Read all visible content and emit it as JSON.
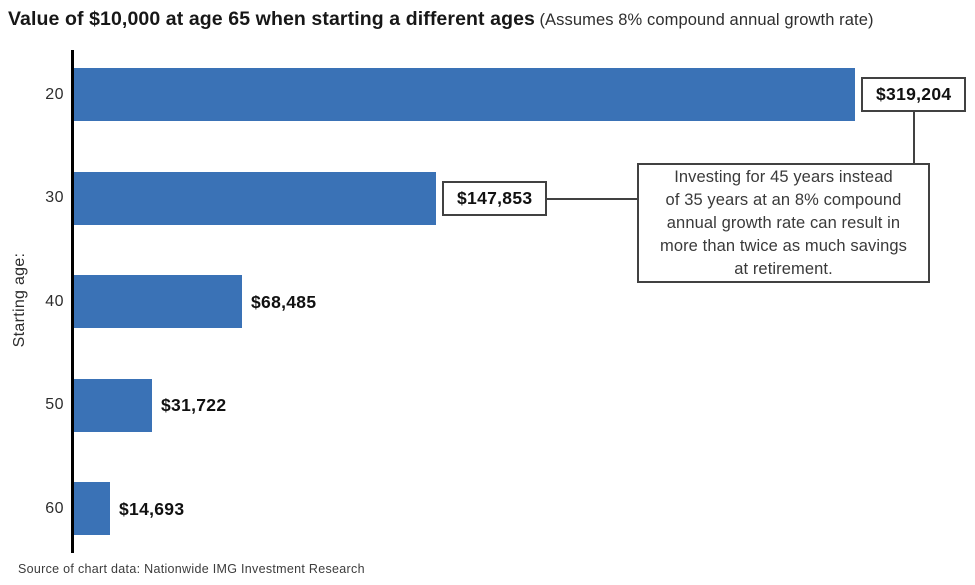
{
  "chart_data": {
    "type": "bar",
    "orientation": "horizontal",
    "title": "Value of $10,000 at age 65 when starting a different ages",
    "subtitle": "(Assumes 8% compound annual growth rate)",
    "ylabel": "Starting age:",
    "xlabel": "",
    "categories": [
      "20",
      "30",
      "40",
      "50",
      "60"
    ],
    "values": [
      319204,
      147853,
      68485,
      31722,
      14693
    ],
    "value_labels": [
      "$319,204",
      "$147,853",
      "$68,485",
      "$31,722",
      "$14,693"
    ],
    "boxed_labels": [
      true,
      true,
      false,
      false,
      false
    ],
    "xlim": [
      0,
      319204
    ],
    "grid": false,
    "legend": false,
    "bar_color": "#3A72B6",
    "box_border_color": "#414141",
    "annotation_text": "Investing for 45 years instead\nof 35 years at an 8% compound\nannual growth rate can result in\nmore than twice as much savings\nat retirement.",
    "source": "Source of chart data: Nationwide IMG Investment Research"
  }
}
